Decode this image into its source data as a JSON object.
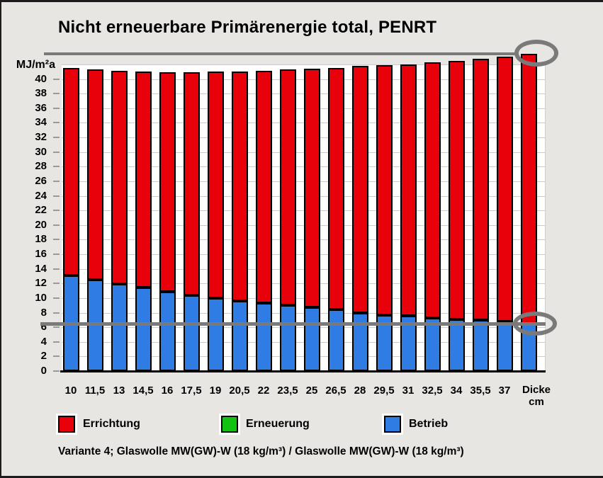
{
  "title": "Nicht erneuerbare Primärenergie total, PENRT",
  "axis": {
    "unit_label": "MJ/m²a",
    "x_header_line1": "Dicke",
    "x_header_line2": "cm"
  },
  "chart_data": {
    "type": "bar",
    "stacked": true,
    "title": "Nicht erneuerbare Primärenergie total, PENRT",
    "ylabel": "MJ/m²a",
    "xlabel": "Dicke cm",
    "ylim": [
      0,
      42
    ],
    "yticks": [
      0,
      2,
      4,
      6,
      8,
      10,
      12,
      14,
      16,
      18,
      20,
      22,
      24,
      26,
      28,
      30,
      32,
      34,
      36,
      38,
      40
    ],
    "grid": true,
    "legend_position": "bottom",
    "categories": [
      "10",
      "11,5",
      "13",
      "14,5",
      "16",
      "17,5",
      "19",
      "20,5",
      "22",
      "23,5",
      "25",
      "26,5",
      "28",
      "29,5",
      "31",
      "32,5",
      "34",
      "35,5",
      "37",
      ""
    ],
    "series": [
      {
        "name": "Betrieb",
        "color": "#2e7ce4",
        "values": [
          13.1,
          12.5,
          11.9,
          11.4,
          10.9,
          10.4,
          10.0,
          9.6,
          9.3,
          9.0,
          8.7,
          8.4,
          8.0,
          7.7,
          7.6,
          7.3,
          7.1,
          7.0,
          6.8,
          6.5
        ]
      },
      {
        "name": "Erneuerung",
        "color": "#12c312",
        "values": [
          0,
          0,
          0,
          0,
          0,
          0,
          0,
          0,
          0,
          0,
          0,
          0,
          0,
          0,
          0,
          0,
          0,
          0,
          0,
          0
        ]
      },
      {
        "name": "Errichtung",
        "color": "#e8000b",
        "values": [
          28.4,
          28.8,
          29.2,
          29.6,
          30.0,
          30.5,
          31.0,
          31.4,
          31.8,
          32.3,
          32.7,
          33.1,
          33.8,
          34.2,
          34.4,
          35.0,
          35.4,
          35.8,
          36.3,
          37.0
        ]
      }
    ],
    "totals": [
      41.5,
      41.3,
      41.1,
      41.0,
      40.9,
      40.9,
      41.0,
      41.0,
      41.1,
      41.3,
      41.4,
      41.5,
      41.8,
      41.9,
      42.0,
      42.3,
      42.5,
      42.8,
      43.1,
      43.5
    ],
    "reference_lines": [
      {
        "name": "total-of-last-bar",
        "value": 43.5,
        "color": "#7a7a7a"
      },
      {
        "name": "betrieb-of-last-bar",
        "value": 6.5,
        "color": "#7a7a7a"
      }
    ],
    "annotations": [
      {
        "shape": "ellipse",
        "target": "last-bar-total"
      },
      {
        "shape": "ellipse",
        "target": "last-bar-betrieb"
      }
    ]
  },
  "legend": {
    "items": [
      {
        "label": "Errichtung",
        "color": "#e8000b"
      },
      {
        "label": "Erneuerung",
        "color": "#12c312"
      },
      {
        "label": "Betrieb",
        "color": "#2e7ce4"
      }
    ]
  },
  "footer": {
    "note": "Variante 4; Glaswolle MW(GW)-W (18 kg/m³) / Glaswolle MW(GW)-W (18 kg/m³)"
  }
}
